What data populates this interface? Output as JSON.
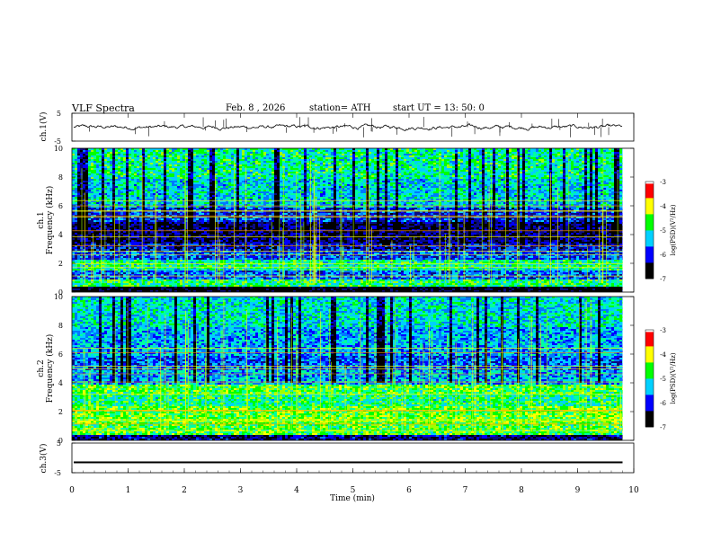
{
  "header": {
    "title": "VLF Spectra",
    "date": "Feb. 8 , 2026",
    "station": "station= ATH",
    "start": "start UT = 13: 50: 0"
  },
  "colors": {
    "colormap": [
      "#000000",
      "#0a0a80",
      "#0000ff",
      "#0078ff",
      "#00d0ff",
      "#00ffa0",
      "#00ff00",
      "#a0ff00",
      "#ffff00",
      "#ff9000",
      "#ff0000",
      "#ffffff"
    ],
    "waveform": "#000000"
  },
  "chart_data": [
    {
      "type": "line",
      "name": "ch1-waveform",
      "ylabel": "ch.1(V)",
      "ylim": [
        -5,
        5
      ],
      "yticks": [
        5,
        -5
      ],
      "xlim": [
        0,
        10
      ],
      "approx_mean": 0,
      "approx_amplitude": 0.6,
      "spikes_visible": true
    },
    {
      "type": "heatmap",
      "name": "ch1-spectrogram",
      "ylabel": "ch.1\nFrequency (kHz)",
      "ylim": [
        0,
        10
      ],
      "yticks": [
        0,
        2,
        4,
        6,
        8,
        10
      ],
      "xlim": [
        0,
        10
      ],
      "colorbar": {
        "label": "log(PSD)(V²/Hz)",
        "ticks": [
          -3,
          -4,
          -5,
          -6,
          -7
        ],
        "range": [
          -7,
          -3
        ]
      },
      "bands_khz": [
        {
          "from": 0.0,
          "to": 0.5,
          "level": -7.0
        },
        {
          "from": 0.5,
          "to": 1.0,
          "level": -4.8
        },
        {
          "from": 1.0,
          "to": 1.6,
          "level": -5.8
        },
        {
          "from": 1.6,
          "to": 2.3,
          "level": -5.0
        },
        {
          "from": 2.3,
          "to": 3.0,
          "level": -5.9
        },
        {
          "from": 3.0,
          "to": 3.5,
          "level": -6.2
        },
        {
          "from": 3.5,
          "to": 5.0,
          "level": -6.6
        },
        {
          "from": 5.0,
          "to": 6.0,
          "level": -6.0
        },
        {
          "from": 6.0,
          "to": 8.0,
          "level": -5.3
        },
        {
          "from": 8.0,
          "to": 10.0,
          "level": -5.0
        }
      ]
    },
    {
      "type": "heatmap",
      "name": "ch2-spectrogram",
      "ylabel": "ch.2\nFrequency (kHz)",
      "ylim": [
        0,
        10
      ],
      "yticks": [
        0,
        2,
        4,
        6,
        8,
        10
      ],
      "xlim": [
        0,
        10
      ],
      "colorbar": {
        "label": "log(PSD)(V²/Hz)",
        "ticks": [
          -3,
          -4,
          -5,
          -6,
          -7
        ],
        "range": [
          -7,
          -3
        ]
      },
      "bands_khz": [
        {
          "from": 0.0,
          "to": 0.5,
          "level": -6.5
        },
        {
          "from": 0.5,
          "to": 1.2,
          "level": -4.6
        },
        {
          "from": 1.2,
          "to": 2.5,
          "level": -4.5
        },
        {
          "from": 2.5,
          "to": 3.3,
          "level": -4.9
        },
        {
          "from": 3.3,
          "to": 4.0,
          "level": -4.6
        },
        {
          "from": 4.0,
          "to": 5.0,
          "level": -5.5
        },
        {
          "from": 5.0,
          "to": 6.0,
          "level": -5.8
        },
        {
          "from": 6.0,
          "to": 8.0,
          "level": -5.5
        },
        {
          "from": 8.0,
          "to": 10.0,
          "level": -5.2
        }
      ]
    },
    {
      "type": "line",
      "name": "ch3-waveform",
      "ylabel": "ch.3(V)",
      "ylim": [
        -5,
        5
      ],
      "yticks": [
        5,
        -5
      ],
      "xlim": [
        0,
        10
      ],
      "approx_mean": -1.5,
      "approx_amplitude": 0.3
    }
  ],
  "xaxis": {
    "label": "Time (min)",
    "ticks": [
      0,
      1,
      2,
      3,
      4,
      5,
      6,
      7,
      8,
      9,
      10
    ],
    "data_end": 9.8
  }
}
